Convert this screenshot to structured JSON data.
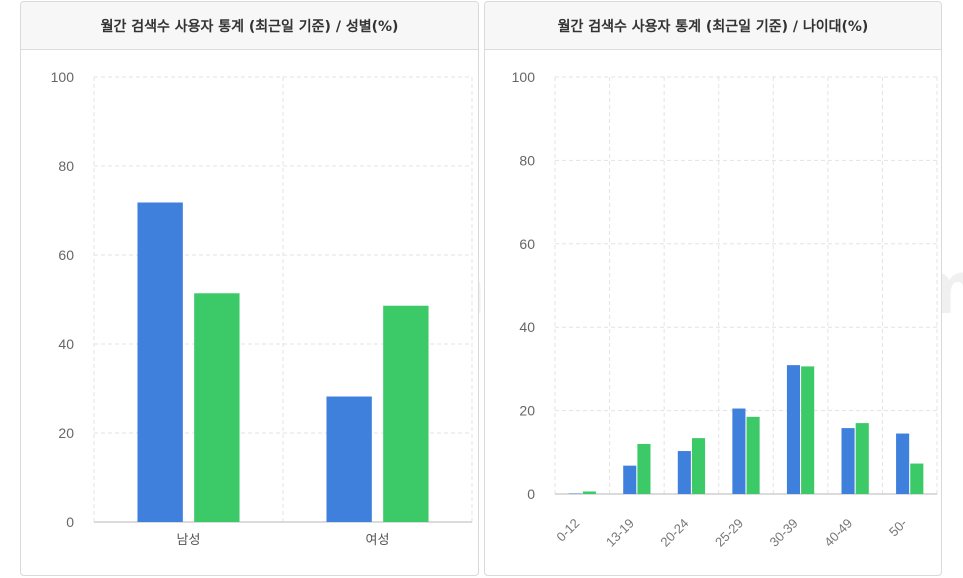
{
  "watermark": "dailygrim.tistory.com",
  "colors": {
    "series1": "#3f80dc",
    "series2": "#3cc968"
  },
  "chart_data": [
    {
      "type": "bar",
      "title": "월간 검색수 사용자 통계 (최근일 기준) / 성별(%)",
      "categories": [
        "남성",
        "여성"
      ],
      "series": [
        {
          "values": [
            71.8,
            28.2
          ]
        },
        {
          "values": [
            51.4,
            48.6
          ]
        }
      ],
      "ylim": [
        0,
        100
      ],
      "yticks": [
        0,
        20,
        40,
        60,
        80,
        100
      ],
      "grid": true,
      "legend": "none"
    },
    {
      "type": "bar",
      "title": "월간 검색수 사용자 통계 (최근일 기준) / 나이대(%)",
      "categories": [
        "0-12",
        "13-19",
        "20-24",
        "25-29",
        "30-39",
        "40-49",
        "50-"
      ],
      "series": [
        {
          "values": [
            0.1,
            6.8,
            10.3,
            20.5,
            30.9,
            15.8,
            14.5
          ]
        },
        {
          "values": [
            0.6,
            12.0,
            13.4,
            18.5,
            30.6,
            17.0,
            7.3
          ]
        }
      ],
      "ylim": [
        0,
        100
      ],
      "yticks": [
        0,
        20,
        40,
        60,
        80,
        100
      ],
      "grid": true,
      "legend": "none"
    }
  ]
}
